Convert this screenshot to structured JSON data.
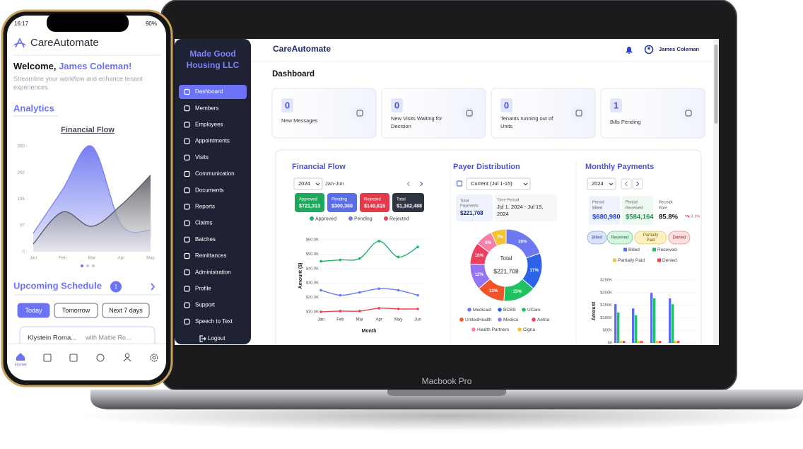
{
  "laptop": {
    "org_lines": [
      "Made Good",
      "Housing LLC"
    ],
    "menu": [
      "Dashboard",
      "Members",
      "Employees",
      "Appointments",
      "Visits",
      "Communication",
      "Documents",
      "Reports",
      "Claims",
      "Batches",
      "Remittances",
      "Administration",
      "Profile",
      "Support",
      "Speech to Text"
    ],
    "logout": "Logout",
    "brand": "CareAutomate",
    "user": "James Coleman",
    "page_title": "Dashboard",
    "cards": [
      {
        "value": 0,
        "label": [
          "New Messages"
        ]
      },
      {
        "value": 0,
        "label": [
          "New Visits Waiting for",
          "Decision"
        ]
      },
      {
        "value": 0,
        "label": [
          "Tenants running out of",
          "Units"
        ]
      },
      {
        "value": 1,
        "label": [
          "Bills Pending"
        ]
      }
    ],
    "financial_flow": {
      "title": "Financial Flow",
      "year": "2024",
      "period": "Jan-Jun",
      "summary": [
        {
          "label": "Approved",
          "amount": "$721,313",
          "color": "#1ea85e"
        },
        {
          "label": "Pending",
          "amount": "$300,360",
          "color": "#5b6ee8"
        },
        {
          "label": "Rejected",
          "amount": "$140,815",
          "color": "#e23a4b"
        },
        {
          "label": "Total",
          "amount": "$1,162,488",
          "color": "#2e3440"
        }
      ],
      "chart": {
        "type": "line",
        "categories": [
          "Jan",
          "Feb",
          "Mar",
          "Apr",
          "May",
          "Jun"
        ],
        "series": [
          {
            "name": "Approved",
            "color": "#1fb46a",
            "values": [
              45000,
              46000,
              47000,
              59000,
              48000,
              55000
            ]
          },
          {
            "name": "Pending",
            "color": "#6b7cf0",
            "values": [
              25000,
              21500,
              23500,
              26000,
              25000,
              21500
            ]
          },
          {
            "name": "Rejected",
            "color": "#e5414f",
            "values": [
              10000,
              10500,
              10500,
              12500,
              12000,
              12000
            ]
          }
        ],
        "ylim": [
          10000,
          60000
        ],
        "yticks": [
          {
            "value": 10000,
            "label": "$10.0K"
          },
          {
            "value": 20000,
            "label": "$20.0K"
          },
          {
            "value": 30000,
            "label": "$30.0K"
          },
          {
            "value": 40000,
            "label": "$40.0K"
          },
          {
            "value": 50000,
            "label": "$50.0K"
          },
          {
            "value": 60000,
            "label": "$60.0K"
          }
        ],
        "xlabel": "Month",
        "ylabel": "Amount ($)",
        "grid": true
      }
    },
    "payer_distribution": {
      "title": "Payer Distribution",
      "period_select": "Current (Jul 1-15)",
      "total_label": [
        "Total",
        "Payments"
      ],
      "total": "$221,708",
      "time_label": "Time Period",
      "time_value": [
        "Jul 1, 2024 - Jul 15,",
        "2024"
      ],
      "chart": {
        "type": "pie",
        "categories": [
          "Medicaid",
          "BCBS",
          "UCare",
          "UnitedHealth",
          "Medica",
          "Aetna",
          "Health Partners",
          "Cigna"
        ],
        "values": [
          20,
          17,
          15,
          13,
          12,
          10,
          8,
          7
        ],
        "value_labels": [
          "20%",
          "17%",
          "15%",
          "13%",
          "12%",
          "10%",
          "8%",
          "7%"
        ],
        "colors": [
          "#6f78f0",
          "#2d63e6",
          "#22bf63",
          "#f2532a",
          "#9474f2",
          "#ef3f5e",
          "#fb7ea6",
          "#f4c331"
        ],
        "center_label": "Total",
        "center_value": "$221,708"
      }
    },
    "monthly_payments": {
      "title": "Monthly Payments",
      "year": "2024",
      "stats": [
        {
          "label": [
            "Period",
            "Billed"
          ],
          "value": "$680,980",
          "color": "#2546c9",
          "bg": "#eff3fd"
        },
        {
          "label": [
            "Period",
            "Received"
          ],
          "value": "$584,164",
          "color": "#169a4e",
          "bg": "#eef9f2"
        },
        {
          "label": [
            "Receipt",
            "Rate"
          ],
          "value": "85.8%",
          "color": "#111111",
          "bg": "#ffffff"
        }
      ],
      "rate_change": "3.1%",
      "filters": [
        [
          "Billed"
        ],
        [
          "Received"
        ],
        [
          "Partially",
          "Paid"
        ],
        [
          "Denied"
        ]
      ],
      "chart": {
        "type": "bar",
        "series": [
          {
            "name": "Billed",
            "color": "#5b6ef0",
            "values": [
              154000,
              137000,
              199000,
              177000
            ]
          },
          {
            "name": "Received",
            "color": "#22c06a",
            "values": [
              121000,
              110000,
              177000,
              154000
            ]
          },
          {
            "name": "Partially Paid",
            "color": "#f3c33c",
            "values": [
              8000,
              8000,
              8000,
              8000
            ]
          },
          {
            "name": "Denied",
            "color": "#e8414c",
            "values": [
              8000,
              8000,
              8000,
              8000
            ]
          }
        ],
        "ylim": [
          0,
          250000
        ],
        "yticks": [
          {
            "value": 0,
            "label": "$0"
          },
          {
            "value": 50000,
            "label": "$50K"
          },
          {
            "value": 100000,
            "label": "$100K"
          },
          {
            "value": 150000,
            "label": "$150K"
          },
          {
            "value": 200000,
            "label": "$200K"
          },
          {
            "value": 250000,
            "label": "$250K"
          }
        ],
        "ylabel": "Amount",
        "grid": true
      }
    },
    "device_label": "Macbook Pro"
  },
  "phone": {
    "status_time": "16:17",
    "battery": "90%",
    "brand": "CareAutomate",
    "welcome": "Welcome, ",
    "user": "James Coleman!",
    "subtitle_lines": [
      "Streamline your workflow and enhance tenant",
      "experiences."
    ],
    "analytics": "Analytics",
    "chart": {
      "type": "area",
      "title": "Financial Flow",
      "categories": [
        "Jan",
        "Feb",
        "Mar",
        "Apr",
        "May"
      ],
      "series": [
        {
          "color": "#7a83f2",
          "values": [
            68,
            230,
            390,
            100,
            80
          ]
        },
        {
          "color": "#555a66",
          "values": [
            29,
            147,
            94,
            173,
            283
          ]
        }
      ],
      "ylim": [
        0,
        390
      ],
      "yticks": [
        0,
        97,
        195,
        292,
        390
      ]
    },
    "schedule": {
      "title": "Upcoming Schedule",
      "count": 1,
      "tabs": [
        "Today",
        "Tomorrow",
        "Next 7 days"
      ],
      "item_name": "Klystein Roma...",
      "item_with": "with Mattie Ro..."
    },
    "nav_home": "Home"
  }
}
